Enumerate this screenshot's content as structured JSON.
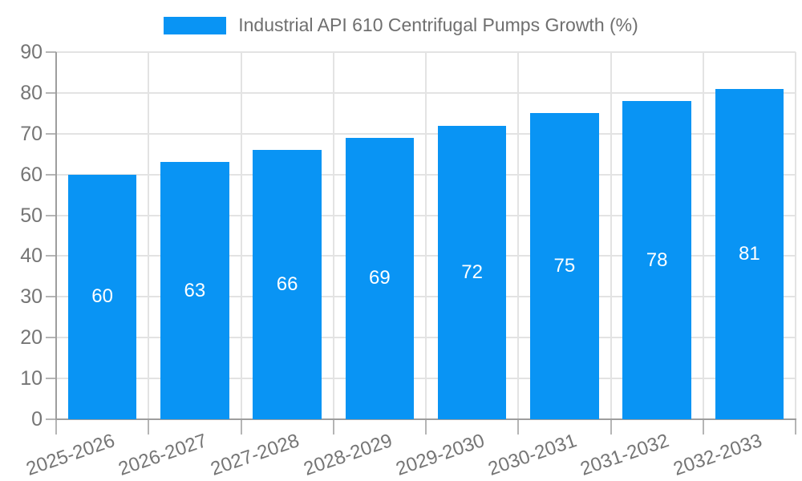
{
  "legend": {
    "label": "Industrial API 610 Centrifugal Pumps Growth (%)"
  },
  "chart_data": {
    "type": "bar",
    "title": "Industrial API 610 Centrifugal Pumps Growth (%)",
    "categories": [
      "2025-2026",
      "2026-2027",
      "2027-2028",
      "2028-2029",
      "2029-2030",
      "2030-2031",
      "2031-2032",
      "2032-2033"
    ],
    "series": [
      {
        "name": "Industrial API 610 Centrifugal Pumps Growth (%)",
        "values": [
          60,
          63,
          66,
          69,
          72,
          75,
          78,
          81
        ]
      }
    ],
    "xlabel": "",
    "ylabel": "",
    "ylim": [
      0,
      90
    ],
    "yticks": [
      0,
      10,
      20,
      30,
      40,
      50,
      60,
      70,
      80,
      90
    ],
    "grid": true,
    "legend_position": "top",
    "x_label_rotation_deg": -19,
    "value_labels_position": "inside-center"
  },
  "colors": {
    "bar": "#0994f4",
    "grid_line": "#e3e3e3",
    "axis_line": "#9e9e9e",
    "tick_line": "#b5b5b5",
    "text": "#757575",
    "value_label": "#ffffff",
    "background": "#ffffff"
  }
}
